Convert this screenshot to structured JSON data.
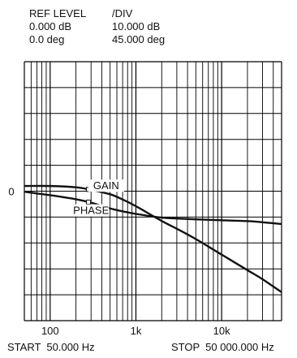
{
  "header": {
    "col1_title": "REF LEVEL",
    "col2_title": "/DIV",
    "gain_ref": "0.000 dB",
    "gain_div": "10.000 dB",
    "phase_ref": "0.0 deg",
    "phase_div": "45.000 deg"
  },
  "footer": {
    "start": "START  50.000 Hz",
    "stop": "STOP  50 000.000 Hz"
  },
  "chart_data": {
    "type": "line",
    "x_scale": "log",
    "xlim": [
      50,
      50000
    ],
    "x_ticks": [
      {
        "value": 100,
        "label": "100"
      },
      {
        "value": 1000,
        "label": "1k"
      },
      {
        "value": 10000,
        "label": "10k"
      }
    ],
    "y_ref_label": "0",
    "grid": true,
    "series": [
      {
        "name": "GAIN",
        "unit": "dB",
        "x": [
          50,
          100,
          200,
          300,
          500,
          700,
          1000,
          2000,
          3000,
          5000,
          10000,
          20000,
          30000,
          50000
        ],
        "y": [
          2.0,
          2.0,
          1.5,
          0.5,
          -1.2,
          -3.2,
          -5.8,
          -11.5,
          -14.5,
          -18.5,
          -24.5,
          -30.5,
          -34.0,
          -39.0
        ]
      },
      {
        "name": "PHASE",
        "unit": "deg",
        "x": [
          50,
          100,
          200,
          300,
          500,
          700,
          1000,
          2000,
          3000,
          5000,
          10000,
          20000,
          30000,
          50000
        ],
        "y": [
          -1,
          -7,
          -14,
          -20,
          -30,
          -35,
          -39.5,
          -46,
          -47.5,
          -49,
          -50.5,
          -52,
          -54,
          -57
        ]
      }
    ]
  }
}
